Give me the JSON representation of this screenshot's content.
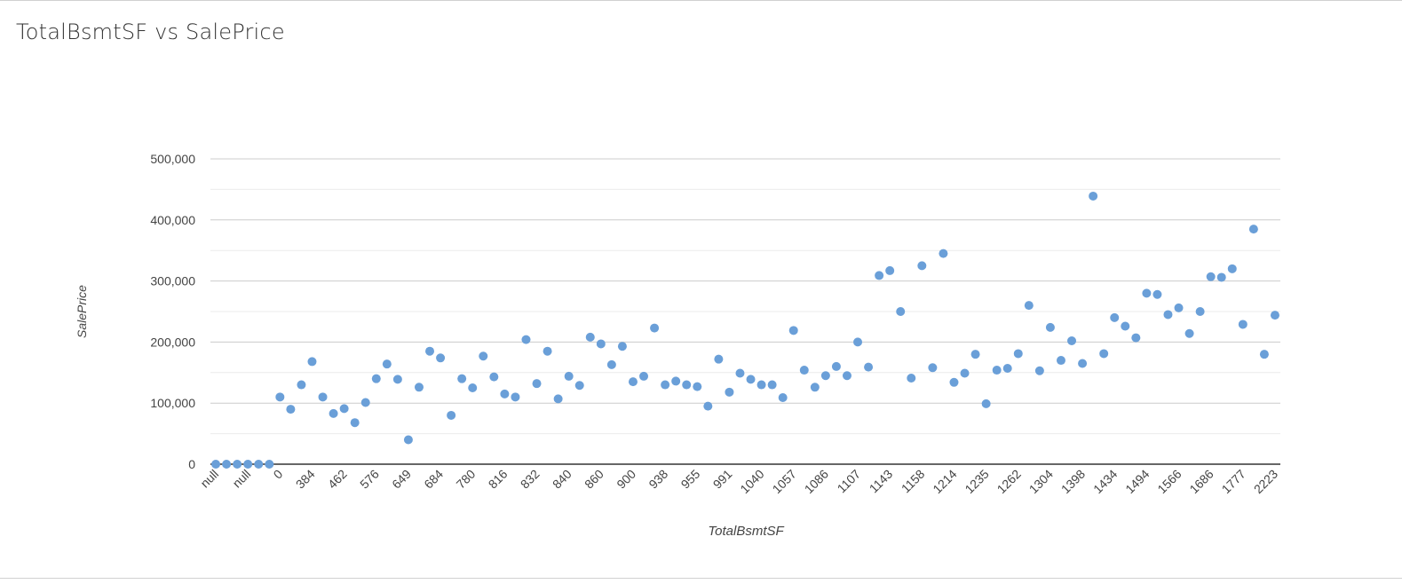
{
  "chart_data": {
    "type": "scatter",
    "title": "TotalBsmtSF vs SalePrice",
    "xlabel": "TotalBsmtSF",
    "ylabel": "SalePrice",
    "ylim": [
      0,
      500000
    ],
    "y_ticks": [
      "0",
      "100,000",
      "200,000",
      "300,000",
      "400,000",
      "500,000"
    ],
    "y_tick_values": [
      0,
      100000,
      200000,
      300000,
      400000,
      500000
    ],
    "x_tick_labels": [
      "null",
      "null",
      "0",
      "384",
      "462",
      "576",
      "649",
      "684",
      "780",
      "816",
      "832",
      "840",
      "860",
      "900",
      "938",
      "955",
      "991",
      "1040",
      "1057",
      "1086",
      "1107",
      "1143",
      "1158",
      "1214",
      "1235",
      "1262",
      "1304",
      "1398",
      "1434",
      "1494",
      "1566",
      "1686",
      "1777",
      "2223"
    ],
    "grid": true,
    "point_color": "#6a9fd8",
    "values": [
      0,
      0,
      0,
      0,
      0,
      0,
      110000,
      90000,
      130000,
      168000,
      110000,
      83000,
      91000,
      68000,
      101000,
      140000,
      164000,
      139000,
      40000,
      126000,
      185000,
      174000,
      80000,
      140000,
      125000,
      177000,
      143000,
      115000,
      110000,
      204000,
      132000,
      185000,
      107000,
      144000,
      129000,
      208000,
      197000,
      163000,
      193000,
      135000,
      144000,
      223000,
      130000,
      136000,
      130000,
      127000,
      95000,
      172000,
      118000,
      149000,
      139000,
      130000,
      130000,
      109000,
      219000,
      154000,
      126000,
      145000,
      160000,
      145000,
      200000,
      159000,
      309000,
      317000,
      250000,
      141000,
      325000,
      158000,
      345000,
      134000,
      149000,
      180000,
      99000,
      154000,
      157000,
      181000,
      260000,
      153000,
      224000,
      170000,
      202000,
      165000,
      439000,
      181000,
      240000,
      226000,
      207000,
      280000,
      278000,
      245000,
      256000,
      214000,
      250000,
      307000,
      306000,
      320000,
      229000,
      385000,
      180000,
      244000
    ]
  }
}
